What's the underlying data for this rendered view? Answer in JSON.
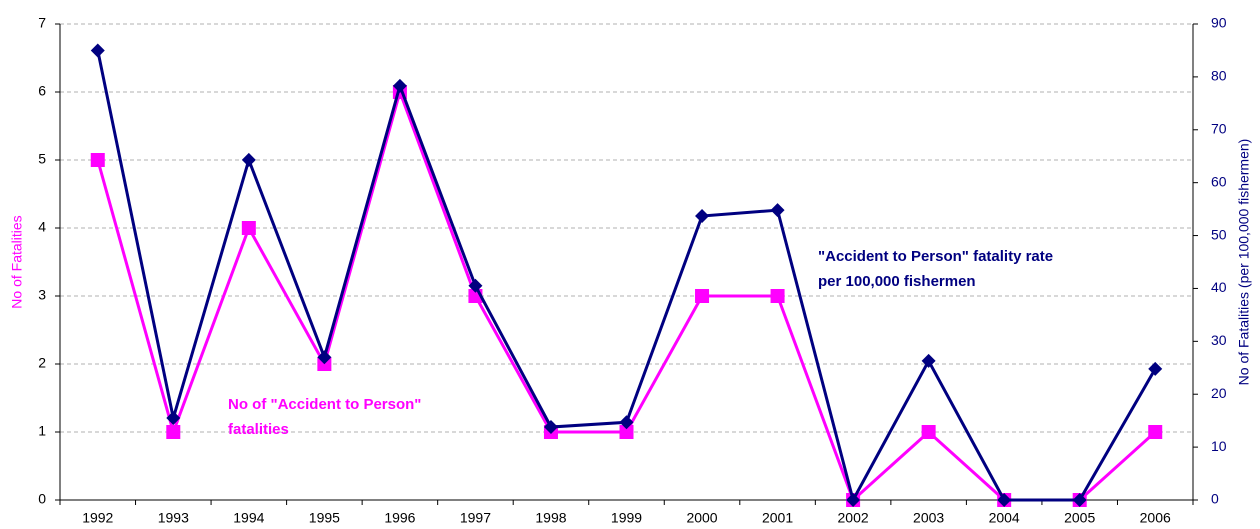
{
  "chart_data": {
    "type": "line",
    "categories": [
      "1992",
      "1993",
      "1994",
      "1995",
      "1996",
      "1997",
      "1998",
      "1999",
      "2000",
      "2001",
      "2002",
      "2003",
      "2004",
      "2005",
      "2006"
    ],
    "series": [
      {
        "name": "No of \"Accident to Person\" fatalities",
        "color": "#ff00ff",
        "marker": "square",
        "axis": "y",
        "values": [
          5,
          1,
          4,
          2,
          6,
          3,
          1,
          1,
          3,
          3,
          0,
          1,
          0,
          0,
          1
        ]
      },
      {
        "name": "\"Accident to Person\" fatality rate per 100,000 fishermen",
        "color": "#000080",
        "marker": "diamond",
        "axis": "y2",
        "values": [
          85,
          15.5,
          64.3,
          27,
          78.3,
          40.5,
          13.8,
          14.7,
          53.7,
          54.8,
          0,
          26.3,
          0,
          0,
          24.8
        ]
      }
    ],
    "ylabel": "No of Fatalities",
    "y2label": "No of Fatalities (per 100,000 fishermen)",
    "ylim": [
      0,
      7
    ],
    "yticks": [
      0,
      1,
      2,
      3,
      4,
      5,
      6,
      7
    ],
    "y2lim": [
      0,
      90
    ],
    "y2ticks": [
      0,
      10,
      20,
      30,
      40,
      50,
      60,
      70,
      80,
      90
    ],
    "grid": true,
    "annotations": [
      {
        "lines": [
          "No of \"Accident to Person\"",
          "fatalities"
        ],
        "color": "#ff00ff"
      },
      {
        "lines": [
          "\"Accident to Person\" fatality rate",
          "per 100,000 fishermen"
        ],
        "color": "#000080"
      }
    ]
  }
}
